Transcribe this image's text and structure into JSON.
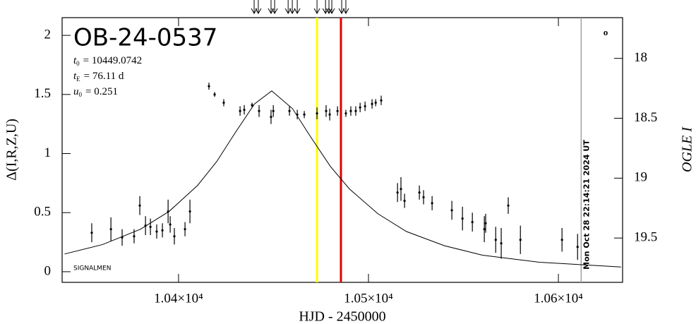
{
  "chart_data": {
    "type": "scatter",
    "title": "OB-24-0537",
    "params": [
      {
        "symbol": "t",
        "sub": "0",
        "text": "= 10449.0742"
      },
      {
        "symbol": "t",
        "sub": "E",
        "text": "= 76.11 d"
      },
      {
        "symbol": "u",
        "sub": "0",
        "text": "= 0.251"
      }
    ],
    "annotation": "SIGNALMEN",
    "corner_mark": "o",
    "x_label": "HJD - 2450000",
    "y_label": "Δ(I,R,Z,U)",
    "y2_label": "OGLE I",
    "xlim": [
      10338.7,
      10633.8
    ],
    "xticks": [
      {
        "value": 10400,
        "label": "1.04×10⁴"
      },
      {
        "value": 10500,
        "label": "1.05×10⁴"
      },
      {
        "value": 10600,
        "label": "1.06×10⁴"
      }
    ],
    "ylim": [
      -0.09,
      2.15
    ],
    "yticks": [
      0,
      0.5,
      1,
      1.5,
      2
    ],
    "y2lim": [
      19.87,
      17.66
    ],
    "y2ticks": [
      18,
      18.5,
      19,
      19.5
    ],
    "color": "#000000",
    "x": [
      10354.3,
      10364.4,
      10370.3,
      10376.6,
      10379.6,
      10382.6,
      10385.2,
      10388.5,
      10391.5,
      10394.5,
      10395.6,
      10397.8,
      10403.4,
      10406.0,
      10416.0,
      10419.0,
      10423.8,
      10432.4,
      10434.6,
      10438.7,
      10442.4,
      10448.7,
      10449.9,
      10458.4,
      10462.5,
      10466.2,
      10472.9,
      10477.7,
      10479.6,
      10483.7,
      10488.1,
      10490.7,
      10493.3,
      10495.6,
      10498.2,
      10501.9,
      10503.8,
      10506.7,
      10515.3,
      10517.1,
      10519.0,
      10526.8,
      10529.0,
      10533.5,
      10543.9,
      10549.5,
      10554.7,
      10561.0,
      10561.7,
      10567.0,
      10569.9,
      10573.6,
      10580.0,
      10601.9,
      10610.1
    ],
    "values": [
      0.33,
      0.36,
      0.29,
      0.3,
      0.56,
      0.39,
      0.38,
      0.34,
      0.35,
      0.51,
      0.4,
      0.3,
      0.36,
      0.51,
      1.57,
      1.5,
      1.43,
      1.36,
      1.37,
      1.41,
      1.36,
      1.31,
      1.36,
      1.36,
      1.33,
      1.33,
      1.34,
      1.36,
      1.33,
      1.36,
      1.34,
      1.36,
      1.36,
      1.39,
      1.4,
      1.42,
      1.43,
      1.45,
      0.67,
      0.7,
      0.6,
      0.67,
      0.63,
      0.58,
      0.52,
      0.45,
      0.42,
      0.36,
      0.41,
      0.27,
      0.24,
      0.56,
      0.27,
      0.27,
      0.21
    ],
    "errors": [
      0.08,
      0.1,
      0.07,
      0.06,
      0.08,
      0.08,
      0.07,
      0.06,
      0.06,
      0.1,
      0.07,
      0.07,
      0.06,
      0.1,
      0.03,
      0.02,
      0.03,
      0.04,
      0.04,
      0.02,
      0.05,
      0.06,
      0.05,
      0.04,
      0.04,
      0.03,
      0.05,
      0.05,
      0.05,
      0.04,
      0.03,
      0.04,
      0.04,
      0.04,
      0.04,
      0.04,
      0.03,
      0.04,
      0.08,
      0.1,
      0.06,
      0.06,
      0.06,
      0.06,
      0.08,
      0.1,
      0.08,
      0.11,
      0.08,
      0.11,
      0.13,
      0.07,
      0.12,
      0.1,
      0.11
    ],
    "model": {
      "x": [
        10340,
        10360,
        10380,
        10395,
        10410,
        10420,
        10430,
        10440,
        10449.07,
        10460,
        10470,
        10480,
        10490,
        10505,
        10520,
        10540,
        10560,
        10590,
        10633
      ],
      "values": [
        0.15,
        0.23,
        0.36,
        0.51,
        0.73,
        0.93,
        1.18,
        1.42,
        1.53,
        1.38,
        1.13,
        0.89,
        0.7,
        0.49,
        0.34,
        0.22,
        0.14,
        0.08,
        0.04
      ],
      "color": "#000000"
    },
    "vlines": [
      {
        "x": 10472.9,
        "color": "#ffff00"
      },
      {
        "x": 10485.5,
        "color": "#e00000"
      },
      {
        "x": 10612.0,
        "color": "#a0a0a0",
        "label": "Mon Oct 28 22:14:21 2024 UT"
      }
    ],
    "arrows": [
      10439.8,
      10442.0,
      10448.7,
      10450.6,
      10457.7,
      10459.9,
      10462.5,
      10472.9,
      10477.4,
      10479.2,
      10480.7,
      10485.9,
      10488.1
    ]
  }
}
